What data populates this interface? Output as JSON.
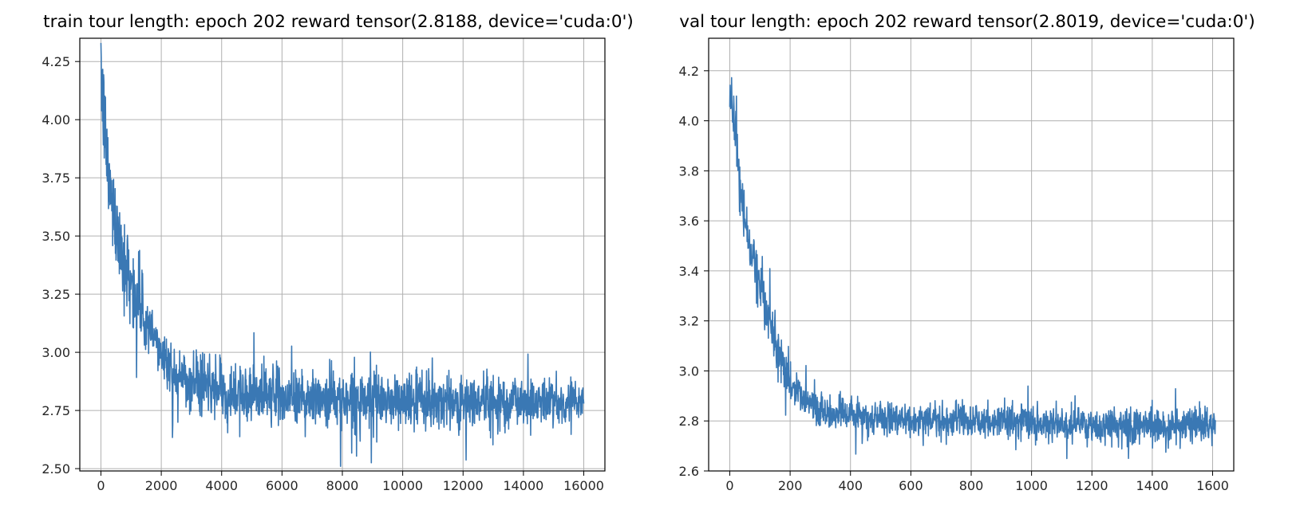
{
  "chart_data": [
    {
      "type": "line",
      "title": "train tour length: epoch 202 reward tensor(2.8188, device='cuda:0')",
      "xlabel": "",
      "ylabel": "",
      "xlim": [
        -700,
        16700
      ],
      "ylim": [
        2.49,
        4.35
      ],
      "xticks": [
        0,
        2000,
        4000,
        6000,
        8000,
        10000,
        12000,
        14000,
        16000
      ],
      "xtick_labels": [
        "0",
        "2000",
        "4000",
        "6000",
        "8000",
        "10000",
        "12000",
        "14000",
        "16000"
      ],
      "yticks": [
        2.5,
        2.75,
        3.0,
        3.25,
        3.5,
        3.75,
        4.0,
        4.25
      ],
      "ytick_labels": [
        "2.50",
        "2.75",
        "3.00",
        "3.25",
        "3.50",
        "3.75",
        "4.00",
        "4.25"
      ],
      "grid": true,
      "color": "#3a78b4",
      "x_range": [
        0,
        16000
      ],
      "y_approx": {
        "x": [
          0,
          100,
          250,
          500,
          750,
          1000,
          1500,
          2000,
          2500,
          3000,
          3500,
          4000,
          5000,
          6000,
          7000,
          8000,
          10000,
          12000,
          14000,
          16000
        ],
        "y": [
          4.2,
          4.0,
          3.75,
          3.55,
          3.42,
          3.3,
          3.12,
          3.0,
          2.92,
          2.87,
          2.85,
          2.83,
          2.82,
          2.81,
          2.8,
          2.8,
          2.79,
          2.79,
          2.79,
          2.79
        ]
      },
      "noise_std": 0.06
    },
    {
      "type": "line",
      "title": "val tour length: epoch 202 reward tensor(2.8019, device='cuda:0')",
      "xlabel": "",
      "ylabel": "",
      "xlim": [
        -70,
        1670
      ],
      "ylim": [
        2.6,
        4.33
      ],
      "xticks": [
        0,
        200,
        400,
        600,
        800,
        1000,
        1200,
        1400,
        1600
      ],
      "xtick_labels": [
        "0",
        "200",
        "400",
        "600",
        "800",
        "1000",
        "1200",
        "1400",
        "1600"
      ],
      "yticks": [
        2.6,
        2.8,
        3.0,
        3.2,
        3.4,
        3.6,
        3.8,
        4.0,
        4.2
      ],
      "ytick_labels": [
        "2.6",
        "2.8",
        "3.0",
        "3.2",
        "3.4",
        "3.6",
        "3.8",
        "4.0",
        "4.2"
      ],
      "grid": true,
      "color": "#3a78b4",
      "x_range": [
        0,
        1610
      ],
      "y_approx": {
        "x": [
          0,
          10,
          25,
          50,
          75,
          100,
          150,
          200,
          250,
          300,
          350,
          400,
          500,
          600,
          800,
          1000,
          1200,
          1400,
          1610
        ],
        "y": [
          4.15,
          4.05,
          3.85,
          3.6,
          3.45,
          3.35,
          3.1,
          2.95,
          2.88,
          2.84,
          2.83,
          2.82,
          2.81,
          2.8,
          2.8,
          2.79,
          2.78,
          2.78,
          2.78
        ]
      },
      "noise_std": 0.035
    }
  ]
}
